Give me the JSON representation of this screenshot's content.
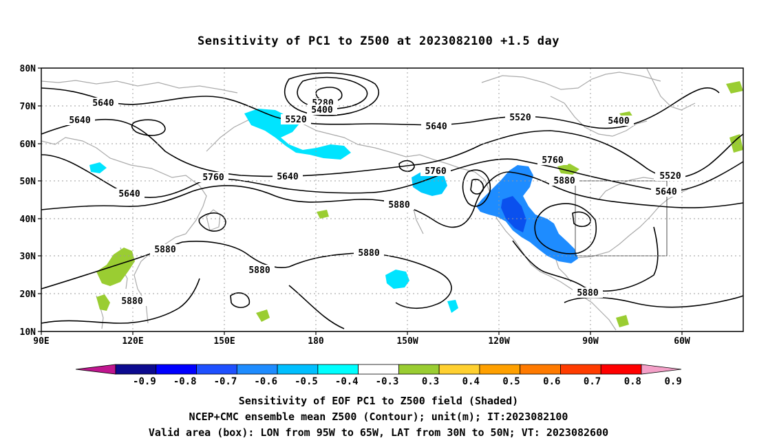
{
  "title": "Sensitivity of PC1 to Z500 at 2023082100 +1.5 day",
  "axes": {
    "lat_labels": [
      "80N",
      "70N",
      "60N",
      "50N",
      "40N",
      "30N",
      "20N",
      "10N"
    ],
    "lon_labels": [
      "90E",
      "120E",
      "150E",
      "180",
      "150W",
      "120W",
      "90W",
      "60W"
    ]
  },
  "contour_labels": [
    "5640",
    "5640",
    "5640",
    "5640",
    "5280",
    "5400",
    "5520",
    "5640",
    "5520",
    "5400",
    "5520",
    "5640",
    "5760",
    "5760",
    "5760",
    "5880",
    "5880",
    "5880",
    "5880",
    "5880",
    "5880",
    "5880"
  ],
  "colorbar": {
    "labels": [
      "-0.9",
      "-0.8",
      "-0.7",
      "-0.6",
      "-0.5",
      "-0.4",
      "-0.3",
      "0.3",
      "0.4",
      "0.5",
      "0.6",
      "0.7",
      "0.8",
      "0.9"
    ],
    "colors": [
      "#c0168f",
      "#0c0a8f",
      "#0000ff",
      "#1e50ff",
      "#1e8cff",
      "#00bfff",
      "#00ffff",
      "#ffffff",
      "#9acd32",
      "#ffd030",
      "#ffa000",
      "#ff7a00",
      "#ff3c00",
      "#ff0000",
      "#f4a0c8"
    ]
  },
  "shading": {
    "negative_color": "#1e8cff",
    "light_negative_color": "#00e4ff",
    "positive_color": "#9acd32"
  },
  "captions": [
    "Sensitivity of EOF PC1 to Z500 field (Shaded)",
    "NCEP+CMC ensemble mean Z500 (Contour); unit(m); IT:2023082100",
    "Valid area (box): LON from 95W to 65W, LAT from 30N to 50N; VT: 2023082600"
  ]
}
